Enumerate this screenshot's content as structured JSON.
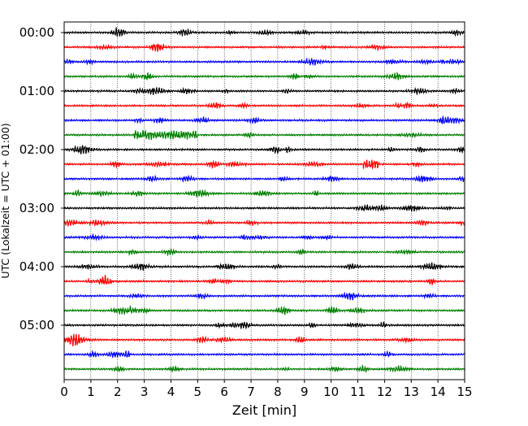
{
  "chart_data": {
    "type": "line",
    "title": "",
    "xlabel": "Zeit  [min]",
    "ylabel": "UTC (Lokalzeit = UTC + 01:00)",
    "xlim": [
      0,
      15
    ],
    "x_ticks": [
      "0",
      "1",
      "2",
      "3",
      "4",
      "5",
      "6",
      "7",
      "8",
      "9",
      "10",
      "11",
      "12",
      "13",
      "14",
      "15"
    ],
    "y_tick_labels": [
      "00:00",
      "01:00",
      "02:00",
      "03:00",
      "04:00",
      "05:00"
    ],
    "grid": "vertical dotted at each minute",
    "trace_interval_minutes": 15,
    "trace_count": 24,
    "trace_colors": [
      "#000000",
      "#ff0000",
      "#0000ff",
      "#008000"
    ],
    "notable_bursts": [
      {
        "trace_start": "01:45",
        "x_range_min": [
          2.6,
          5.0
        ],
        "description": "large-amplitude wave packet"
      },
      {
        "trace_start": "02:15",
        "x_range_min": [
          11.2,
          11.8
        ],
        "description": "short high-amplitude burst"
      }
    ]
  }
}
